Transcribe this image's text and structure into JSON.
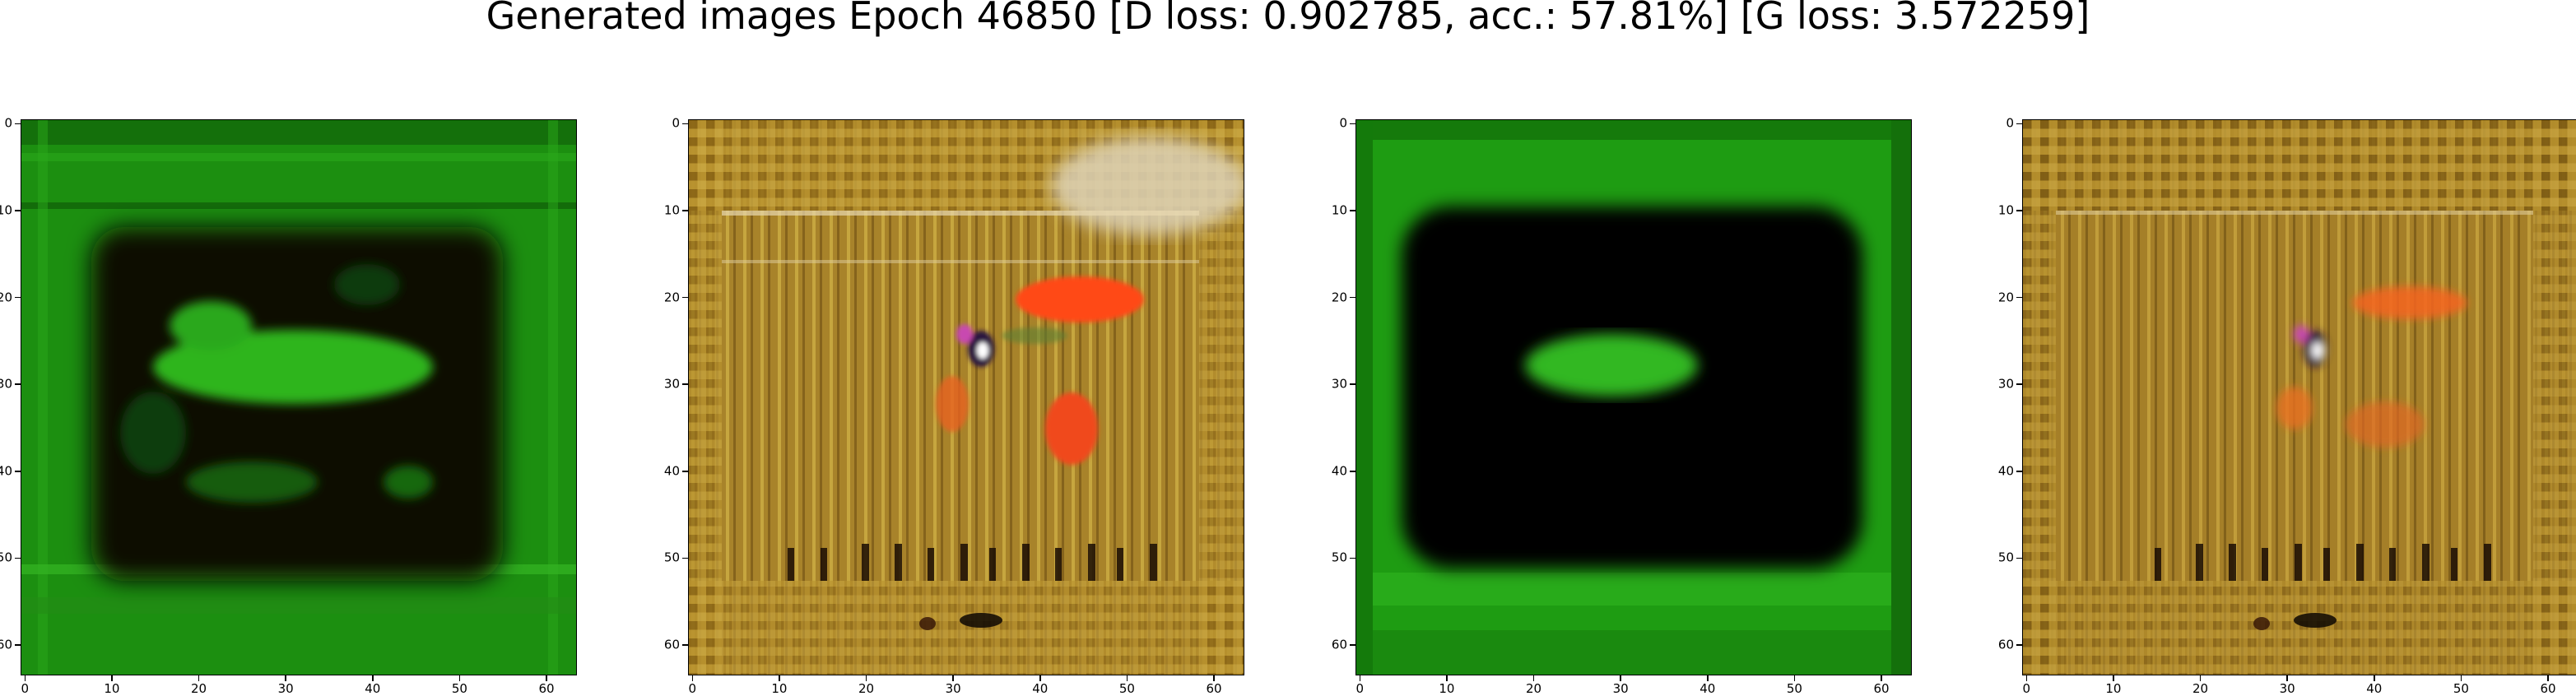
{
  "figure": {
    "title": "Generated images Epoch 46850 [D loss: 0.902785, acc.: 57.81%] [G loss: 3.572259]"
  },
  "axes_ticks": {
    "x": [
      "0",
      "10",
      "20",
      "30",
      "40",
      "50",
      "60"
    ],
    "y": [
      "0",
      "10",
      "20",
      "30",
      "40",
      "50",
      "60"
    ]
  },
  "panels": [
    {
      "kind": "green-frame-blob",
      "description_colors": {
        "frame": "#1f9e12",
        "inner": "#0a0f06",
        "blob": "#2fb51f"
      }
    },
    {
      "kind": "brown-noise",
      "description_colors": {
        "base": "#b08a2a",
        "accent": "#ff5a1e",
        "dark": "#2a1a08"
      }
    },
    {
      "kind": "green-frame-ellipse",
      "description_colors": {
        "frame": "#22a314",
        "inner": "#030503",
        "blob": "#30b822"
      }
    },
    {
      "kind": "brown-noise",
      "description_colors": {
        "base": "#b08a2a",
        "accent": "#ff6a24",
        "dark": "#2a1a08"
      }
    }
  ]
}
